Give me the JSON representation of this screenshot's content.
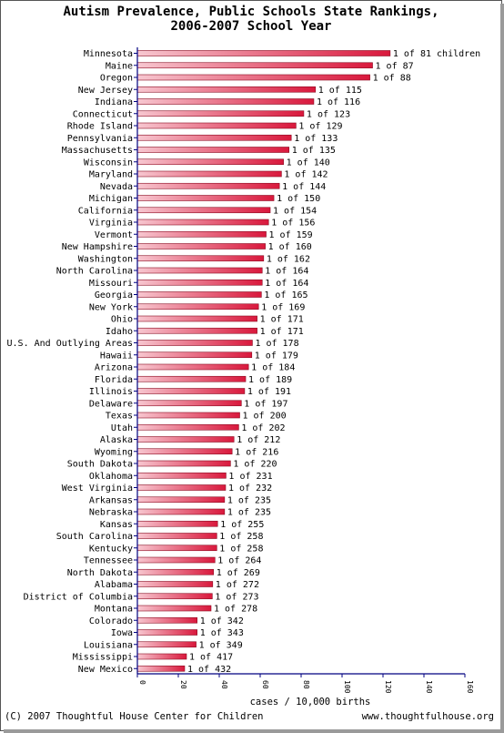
{
  "title_line1": "Autism Prevalence, Public Schools State Rankings,",
  "title_line2": "2006-2007 School Year",
  "footer_left": "(C) 2007 Thoughtful House Center for Children",
  "footer_right": "www.thoughtfulhouse.org",
  "colors": {
    "bar_fill": "#d9183c",
    "bar_light": "#f7c7d0",
    "axis": "#000080"
  },
  "chart_data": {
    "type": "bar",
    "orientation": "horizontal",
    "xlabel": "cases / 10,000 births",
    "xlim": [
      0,
      160
    ],
    "xticks": [
      0,
      20,
      40,
      60,
      80,
      100,
      120,
      140,
      160
    ],
    "grid": false,
    "categories": [
      "Minnesota",
      "Maine",
      "Oregon",
      "New Jersey",
      "Indiana",
      "Connecticut",
      "Rhode Island",
      "Pennsylvania",
      "Massachusetts",
      "Wisconsin",
      "Maryland",
      "Nevada",
      "Michigan",
      "California",
      "Virginia",
      "Vermont",
      "New Hampshire",
      "Washington",
      "North Carolina",
      "Missouri",
      "Georgia",
      "New York",
      "Ohio",
      "Idaho",
      "U.S. And Outlying Areas",
      "Hawaii",
      "Arizona",
      "Florida",
      "Illinois",
      "Delaware",
      "Texas",
      "Utah",
      "Alaska",
      "Wyoming",
      "South Dakota",
      "Oklahoma",
      "West Virginia",
      "Arkansas",
      "Nebraska",
      "Kansas",
      "South Carolina",
      "Kentucky",
      "Tennessee",
      "North Dakota",
      "Alabama",
      "District of Columbia",
      "Montana",
      "Colorado",
      "Iowa",
      "Louisiana",
      "Mississippi",
      "New Mexico"
    ],
    "values": [
      123.5,
      114.9,
      113.6,
      87.0,
      86.2,
      81.3,
      77.5,
      75.2,
      74.1,
      71.4,
      70.4,
      69.4,
      66.7,
      64.9,
      64.1,
      62.9,
      62.5,
      61.7,
      61.0,
      61.0,
      60.6,
      59.2,
      58.5,
      58.5,
      56.2,
      55.9,
      54.3,
      52.9,
      52.4,
      50.8,
      50.0,
      49.5,
      47.2,
      46.3,
      45.5,
      43.3,
      43.1,
      42.6,
      42.6,
      39.2,
      38.8,
      38.8,
      37.9,
      37.2,
      36.8,
      36.6,
      36.0,
      29.2,
      29.2,
      28.7,
      24.0,
      23.1
    ],
    "labels": [
      "1 of 81 children",
      "1 of 87",
      "1 of 88",
      "1 of 115",
      "1 of 116",
      "1 of 123",
      "1 of 129",
      "1 of 133",
      "1 of 135",
      "1 of 140",
      "1 of 142",
      "1 of 144",
      "1 of 150",
      "1 of 154",
      "1 of 156",
      "1 of 159",
      "1 of 160",
      "1 of 162",
      "1 of 164",
      "1 of 164",
      "1 of 165",
      "1 of 169",
      "1 of 171",
      "1 of 171",
      "1 of 178",
      "1 of 179",
      "1 of 184",
      "1 of 189",
      "1 of 191",
      "1 of 197",
      "1 of 200",
      "1 of 202",
      "1 of 212",
      "1 of 216",
      "1 of 220",
      "1 of 231",
      "1 of 232",
      "1 of 235",
      "1 of 235",
      "1 of 255",
      "1 of 258",
      "1 of 258",
      "1 of 264",
      "1 of 269",
      "1 of 272",
      "1 of 273",
      "1 of 278",
      "1 of 342",
      "1 of 343",
      "1 of 349",
      "1 of 417",
      "1 of 432"
    ]
  }
}
